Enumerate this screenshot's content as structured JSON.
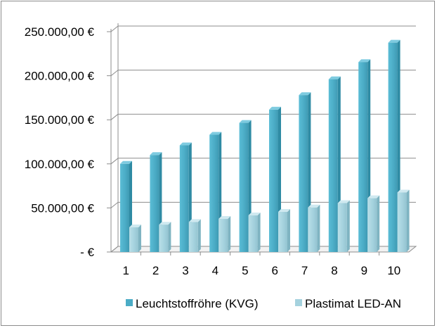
{
  "chart_data": {
    "type": "bar",
    "categories": [
      "1",
      "2",
      "3",
      "4",
      "5",
      "6",
      "7",
      "8",
      "9",
      "10"
    ],
    "series": [
      {
        "name": "Leuchtstoffröhre (KVG)",
        "values": [
          100000,
          110000,
          121000,
          133000,
          146500,
          161500,
          178000,
          196000,
          215500,
          237500
        ],
        "color": "#4bacc6"
      },
      {
        "name": "Plastimat LED-AN",
        "values": [
          28000,
          31000,
          34000,
          37500,
          41500,
          45500,
          50500,
          55500,
          61000,
          67500
        ],
        "color": "#a5d2de"
      }
    ],
    "yticks": [
      {
        "value": 0,
        "label": "-  €"
      },
      {
        "value": 50000,
        "label": "50.000,00 €"
      },
      {
        "value": 100000,
        "label": "100.000,00 €"
      },
      {
        "value": 150000,
        "label": "150.000,00 €"
      },
      {
        "value": 200000,
        "label": "200.000,00 €"
      },
      {
        "value": 250000,
        "label": "250.000,00 €"
      }
    ],
    "ylim": [
      0,
      250000
    ],
    "grid": true,
    "legend_position": "bottom",
    "title": "",
    "xlabel": "",
    "ylabel": ""
  }
}
